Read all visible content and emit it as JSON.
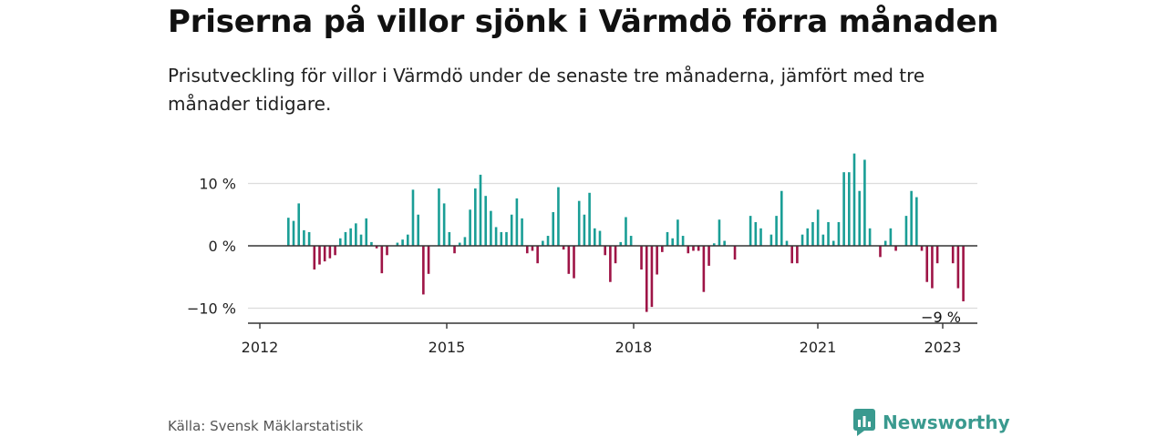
{
  "title": "Priserna på villor sjönk i Värmdö förra månaden",
  "subtitle": "Prisutveckling för villor i Värmdö under de senaste tre månaderna, jämfört med tre månader tidigare.",
  "source": "Källa: Svensk Mäklarstatistik",
  "brand": {
    "name": "Newsworthy",
    "icon": "newsworthy-logo-icon",
    "color": "#3a9a8f"
  },
  "chart_data": {
    "type": "bar",
    "x_start": "2012-06",
    "unit": "%",
    "positive_color": "#1a9e96",
    "negative_color": "#9e1446",
    "ylim": [
      -12,
      17
    ],
    "yticks": [
      {
        "value": 10,
        "label": "10 %"
      },
      {
        "value": 0,
        "label": "0 %"
      },
      {
        "value": -10,
        "label": "−10 %"
      }
    ],
    "xticks": [
      {
        "year": 2012,
        "label": "2012"
      },
      {
        "year": 2015,
        "label": "2015"
      },
      {
        "year": 2018,
        "label": "2018"
      },
      {
        "year": 2021,
        "label": "2021"
      },
      {
        "year": 2023,
        "label": "2023"
      }
    ],
    "grid": true,
    "annotation": {
      "label": "−9 %"
    },
    "values": [
      4.5,
      4,
      6.8,
      2.5,
      2.2,
      -3.8,
      -3,
      -2.5,
      -2,
      -1.5,
      1.2,
      2.2,
      2.8,
      3.6,
      1.8,
      4.4,
      0.6,
      -0.4,
      -4.4,
      -1.5,
      0,
      0.5,
      1,
      1.8,
      9,
      5,
      -7.8,
      -4.5,
      0,
      9.2,
      6.8,
      2.2,
      -1.2,
      0.5,
      1.4,
      5.8,
      9.2,
      11.4,
      8,
      5.6,
      3,
      2.2,
      2.2,
      5,
      7.6,
      4.4,
      -1.2,
      -0.8,
      -2.8,
      0.8,
      1.6,
      5.4,
      9.4,
      -0.6,
      -4.5,
      -5.2,
      7.2,
      5,
      8.5,
      2.8,
      2.4,
      -1.5,
      -5.8,
      -2.8,
      0.6,
      4.6,
      1.6,
      0,
      -3.8,
      -10.6,
      -9.8,
      -4.6,
      -1,
      2.2,
      1.2,
      4.2,
      1.6,
      -1.2,
      -0.8,
      -0.8,
      -7.4,
      -3.2,
      0.4,
      4.2,
      0.8,
      0,
      -2.2,
      0,
      0,
      4.8,
      3.8,
      2.8,
      0,
      1.8,
      4.8,
      8.8,
      0.8,
      -2.8,
      -2.8,
      1.8,
      2.8,
      3.8,
      5.8,
      1.8,
      3.8,
      0.8,
      3.8,
      11.8,
      11.8,
      14.8,
      8.8,
      13.8,
      2.8,
      0,
      -1.8,
      0.8,
      2.8,
      -0.8,
      0,
      4.8,
      8.8,
      7.8,
      -0.8,
      -5.8,
      -6.8,
      -2.8,
      0,
      0,
      -2.8,
      -6.8,
      -8.9
    ]
  }
}
